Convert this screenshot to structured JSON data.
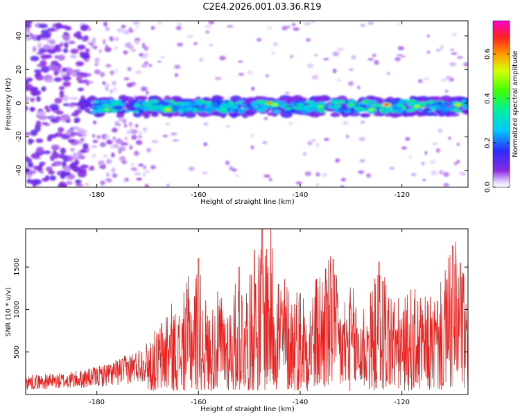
{
  "page": {
    "title": "C2E4.2026.001.03.36.R19"
  },
  "chart_data": [
    {
      "type": "heatmap",
      "title": "C2E4.2026.001.03.36.R19",
      "xlabel": "Height of straight line (km)",
      "ylabel": "Frequency (Hz)",
      "xlim": [
        -194,
        -107
      ],
      "ylim": [
        -50,
        49
      ],
      "x_ticks": [
        -180,
        -160,
        -140,
        -120
      ],
      "y_ticks": [
        40,
        20,
        0,
        -20,
        -40
      ],
      "x_tick_labels": [
        "-180",
        "-160",
        "-140",
        "-120"
      ],
      "y_tick_labels": [
        "40",
        "20",
        "0",
        "-20",
        "-40"
      ],
      "colorbar": {
        "label": "Normalized spectral amplitude",
        "range": [
          0,
          0.75
        ],
        "ticks": [
          0,
          0.2,
          0.4,
          0.6
        ],
        "tick_labels": [
          "0.0",
          "0.2",
          "0.4",
          "0.6"
        ]
      },
      "band": {
        "center_hz": -2,
        "half_width_hz": 4,
        "x_start_km": -183,
        "x_end_km": -107
      },
      "hotspots": [
        {
          "x": -178,
          "y": -4,
          "value": 0.45
        },
        {
          "x": -166,
          "y": -4,
          "value": 0.55
        },
        {
          "x": -146,
          "y": 0,
          "value": 0.62
        },
        {
          "x": -145,
          "y": -1,
          "value": 0.5
        },
        {
          "x": -136,
          "y": -2,
          "value": 0.45
        },
        {
          "x": -130,
          "y": -1,
          "value": 0.42
        },
        {
          "x": -126,
          "y": -4,
          "value": 0.48
        },
        {
          "x": -123,
          "y": -1,
          "value": 0.72
        },
        {
          "x": -117,
          "y": -2,
          "value": 0.5
        },
        {
          "x": -109,
          "y": -1,
          "value": 0.55
        }
      ]
    },
    {
      "type": "line",
      "xlabel": "Height of straight line (km)",
      "ylabel": "SNR (10 * v/v)",
      "xlim": [
        -194,
        -107
      ],
      "ylim": [
        0,
        1950
      ],
      "x_ticks": [
        -180,
        -160,
        -140,
        -120
      ],
      "y_ticks": [
        500,
        1000,
        1500
      ],
      "x_tick_labels": [
        "-180",
        "-160",
        "-140",
        "-120"
      ],
      "y_tick_labels": [
        "500",
        "1000",
        "1500"
      ],
      "series": [
        {
          "name": "SNR",
          "color": "#e8201e",
          "envelope": {
            "x": [
              -194,
              -186,
              -180,
              -176,
              -172,
              -168,
              -166,
              -164,
              -162,
              -160,
              -158,
              -156,
              -154,
              -152,
              -150,
              -148,
              -146,
              -144,
              -142,
              -140,
              -138,
              -136,
              -134,
              -132,
              -130,
              -128,
              -126,
              -124,
              -122,
              -120,
              -118,
              -116,
              -114,
              -112,
              -110,
              -108,
              -107
            ],
            "y": [
              230,
              260,
              330,
              420,
              540,
              720,
              1050,
              900,
              1300,
              1450,
              900,
              1150,
              1050,
              1350,
              1300,
              1650,
              1950,
              1450,
              1200,
              1250,
              1150,
              1450,
              1550,
              1100,
              1200,
              1050,
              1150,
              1550,
              1150,
              1000,
              1200,
              1050,
              1100,
              1250,
              1750,
              1550,
              700
            ]
          },
          "peaks": [
            {
              "x": -160,
              "y": 1600
            },
            {
              "x": -152,
              "y": 1500
            },
            {
              "x": -149,
              "y": 1700
            },
            {
              "x": -147.5,
              "y": 1950
            },
            {
              "x": -135,
              "y": 1480
            },
            {
              "x": -133.5,
              "y": 1590
            },
            {
              "x": -124.5,
              "y": 1560
            },
            {
              "x": -110,
              "y": 1750
            },
            {
              "x": -108.5,
              "y": 1550
            }
          ]
        }
      ]
    }
  ]
}
